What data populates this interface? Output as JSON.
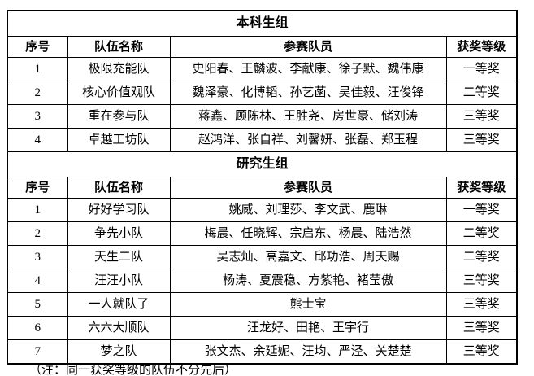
{
  "table": {
    "columns": [
      "序号",
      "队伍名称",
      "参赛队员",
      "获奖等级"
    ],
    "sections": [
      {
        "title": "本科生组",
        "rows": [
          {
            "no": "1",
            "team": "极限充能队",
            "members": "史阳春、王麟波、李献康、徐子默、魏伟康",
            "award": "一等奖"
          },
          {
            "no": "2",
            "team": "核心价值观队",
            "members": "魏泽豪、化博韬、孙艺菡、吴佳毅、汪俊锋",
            "award": "二等奖"
          },
          {
            "no": "3",
            "team": "重在参与队",
            "members": "蒋鑫、顾陈林、王胜尧、房世豪、储刘涛",
            "award": "三等奖"
          },
          {
            "no": "4",
            "team": "卓越工坊队",
            "members": "赵鸿洋、张自祥、刘馨妍、张磊、郑玉程",
            "award": "三等奖"
          }
        ]
      },
      {
        "title": "研究生组",
        "rows": [
          {
            "no": "1",
            "team": "好好学习队",
            "members": "姚威、刘理莎、李文武、鹿琳",
            "award": "一等奖"
          },
          {
            "no": "2",
            "team": "争先小队",
            "members": "梅晨、任晓辉、宗启东、杨晨、陆浩然",
            "award": "二等奖"
          },
          {
            "no": "3",
            "team": "天生二队",
            "members": "吴志灿、高嘉文、邱功浩、周天赐",
            "award": "二等奖"
          },
          {
            "no": "4",
            "team": "汪汪小队",
            "members": "杨涛、夏震稳、方紫艳、褚莹傲",
            "award": "三等奖"
          },
          {
            "no": "5",
            "team": "一人就队了",
            "members": "熊士宝",
            "award": "三等奖"
          },
          {
            "no": "6",
            "team": "六六大顺队",
            "members": "汪龙好、田艳、王宇行",
            "award": "三等奖"
          },
          {
            "no": "7",
            "team": "梦之队",
            "members": "张文杰、余延妮、汪均、严泾、关楚楚",
            "award": "三等奖"
          }
        ]
      }
    ]
  },
  "footnote": "（注：同一获奖等级的队伍不分先后）"
}
